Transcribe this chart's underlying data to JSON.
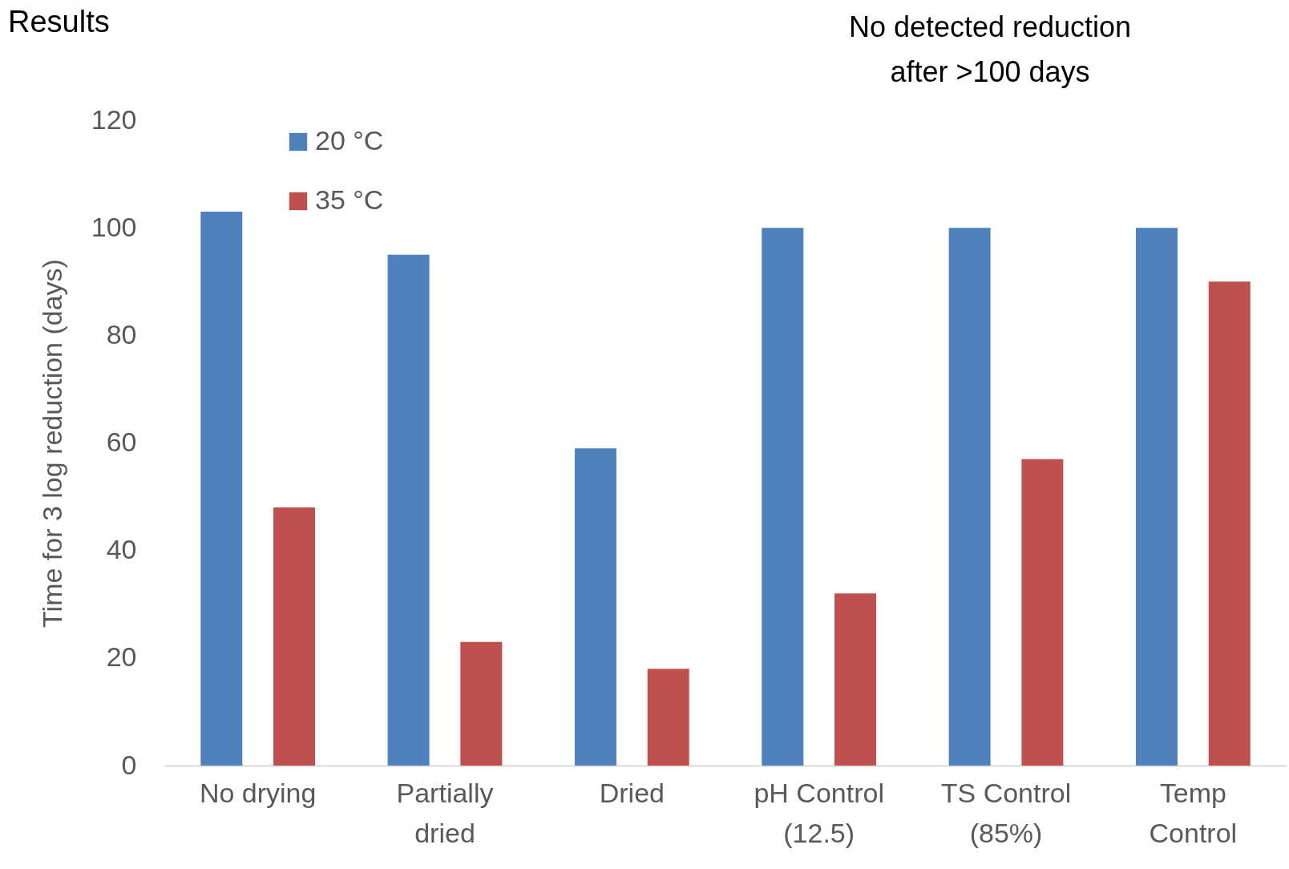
{
  "chart_data": {
    "type": "bar",
    "title": "Results",
    "ylabel": "Time for 3 log reduction (days)",
    "categories": [
      "No drying",
      "Partially\ndried",
      "Dried",
      "pH Control\n(12.5)",
      "TS Control\n(85%)",
      "Temp\nControl"
    ],
    "series": [
      {
        "name": "20 °C",
        "color": "#4f81bd",
        "values": [
          103,
          95,
          59,
          100,
          100,
          100
        ]
      },
      {
        "name": "35 °C",
        "color": "#c0504d",
        "values": [
          48,
          23,
          18,
          32,
          57,
          90
        ]
      }
    ],
    "ylim": [
      0,
      120
    ],
    "yticks": [
      0,
      20,
      40,
      60,
      80,
      100,
      120
    ],
    "grid": false,
    "legend": "top left",
    "annotations": [
      "No detected reduction\nafter >100 days"
    ]
  }
}
